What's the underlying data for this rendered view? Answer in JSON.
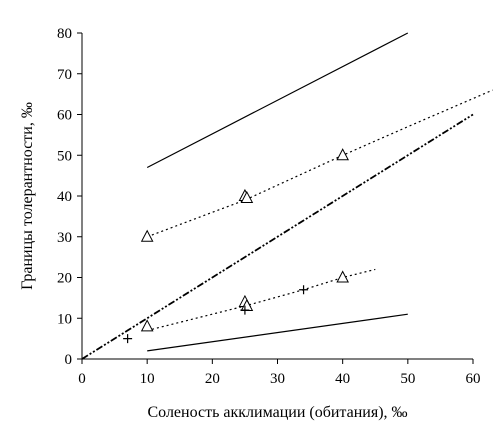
{
  "chart_data": {
    "type": "line",
    "xlabel": "Соленость акклимации (обитания), ‰",
    "ylabel": "Границы толерантности, ‰",
    "xlim": [
      0,
      60
    ],
    "ylim": [
      0,
      80
    ],
    "xticks": [
      "0",
      "10",
      "20",
      "30",
      "40",
      "50",
      "60"
    ],
    "yticks": [
      "0",
      "10",
      "20",
      "30",
      "40",
      "50",
      "60",
      "70",
      "80"
    ],
    "grid": false,
    "legend": "none",
    "series": [
      {
        "style": "solid-line",
        "points": [
          [
            10,
            47
          ],
          [
            50,
            80
          ]
        ]
      },
      {
        "style": "solid-line",
        "points": [
          [
            10,
            2
          ],
          [
            50,
            11
          ]
        ]
      },
      {
        "style": "dash-dot-dot-line",
        "points": [
          [
            0,
            0
          ],
          [
            60,
            60
          ]
        ]
      },
      {
        "style": "dotted-line",
        "points": [
          [
            10,
            30
          ],
          [
            25,
            39
          ],
          [
            40,
            50
          ],
          [
            50,
            57
          ],
          [
            63,
            66
          ]
        ]
      },
      {
        "style": "dotted-line",
        "points": [
          [
            10,
            7
          ],
          [
            25,
            13
          ],
          [
            34,
            17
          ],
          [
            40,
            20
          ],
          [
            45,
            22
          ]
        ]
      },
      {
        "style": "triangle-markers",
        "points": [
          [
            10,
            30
          ],
          [
            25,
            40
          ],
          [
            25.3,
            39.5
          ],
          [
            40,
            50
          ],
          [
            10,
            8
          ],
          [
            25,
            14
          ],
          [
            25.3,
            13
          ],
          [
            40,
            20
          ]
        ]
      },
      {
        "style": "plus-markers",
        "points": [
          [
            7,
            5
          ],
          [
            25,
            12
          ],
          [
            34,
            17
          ]
        ]
      }
    ],
    "colors": {
      "ink": "#000000",
      "background": "#ffffff"
    }
  }
}
